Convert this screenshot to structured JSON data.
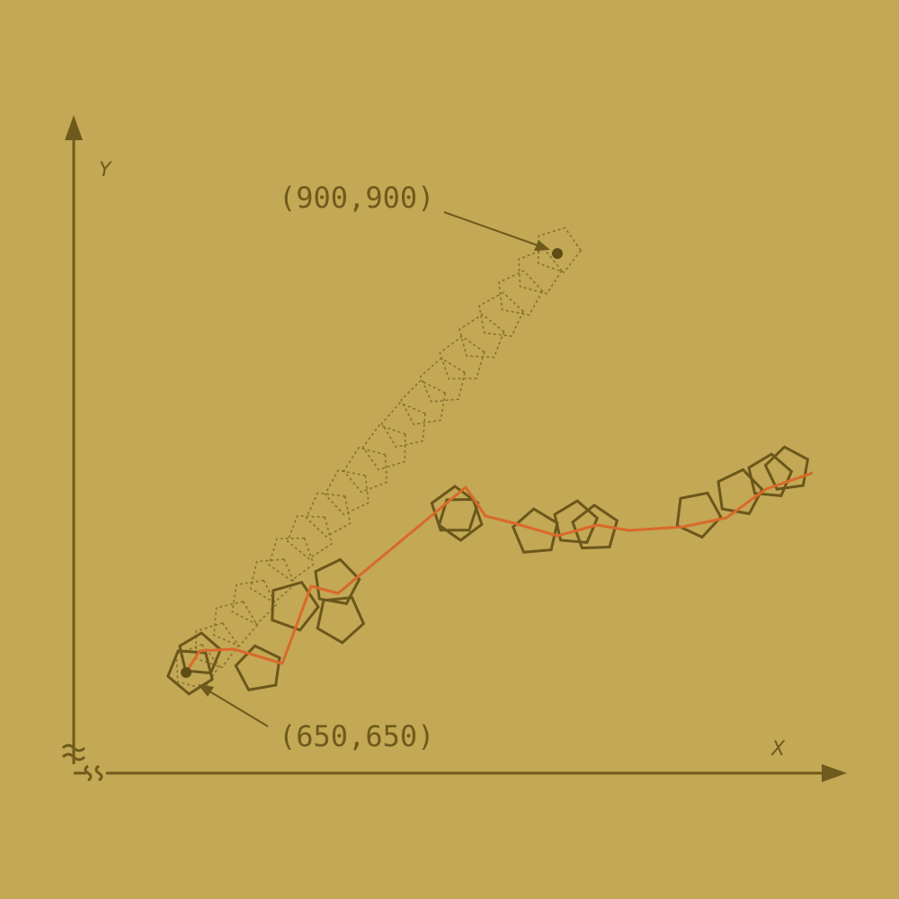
{
  "diagram": {
    "y_axis_label": "Y",
    "x_axis_label": "X",
    "start_label": "(650,650)",
    "end_label": "(900,900)",
    "colors": {
      "background": "#c3a855",
      "axis": "#6e5a1c",
      "pentagon_outline": "#6b571b",
      "trajectory": "#d86a2a"
    }
  }
}
